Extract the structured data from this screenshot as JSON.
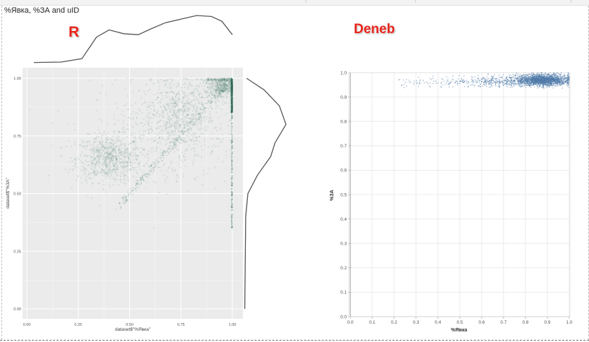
{
  "visual": {
    "title": "%Явка, %ЗА and uID"
  },
  "labels": {
    "r_badge": "R",
    "deneb_badge": "Deneb"
  },
  "colors": {
    "r_points": "#2e6b5a",
    "deneb_points": "#4c78a8",
    "badge_red": "#e8231a",
    "r_panel_bg": "#ebebeb",
    "density_line": "#555555"
  },
  "chart_data": [
    {
      "type": "scatter",
      "panel": "R (ggplot2 with marginal density)",
      "xlabel": "dataset$\"%Явка\"",
      "ylabel": "dataset$\"%ЗА\"",
      "xlim": [
        0.0,
        1.0
      ],
      "ylim": [
        0.0,
        1.0
      ],
      "x_ticks": [
        "0.00",
        "0.25",
        "0.50",
        "0.75",
        "1.00"
      ],
      "y_ticks": [
        "0.00",
        "0.25",
        "0.50",
        "0.75",
        "1.00"
      ],
      "grid": true,
      "legend": "none",
      "clusters": [
        {
          "x": 0.4,
          "y": 0.65,
          "spread_x": 0.08,
          "spread_y": 0.05,
          "weight": 0.3
        },
        {
          "x": 0.75,
          "y": 0.85,
          "spread_x": 0.09,
          "spread_y": 0.08,
          "weight": 0.3
        },
        {
          "x": 0.95,
          "y": 0.97,
          "spread_x": 0.04,
          "spread_y": 0.03,
          "weight": 0.25
        },
        {
          "x": 0.6,
          "y": 0.72,
          "spread_x": 0.2,
          "spread_y": 0.12,
          "weight": 0.15
        }
      ],
      "marginal_density_x": [
        [
          0.02,
          0.02
        ],
        [
          0.15,
          0.03
        ],
        [
          0.25,
          0.1
        ],
        [
          0.32,
          0.55
        ],
        [
          0.38,
          0.7
        ],
        [
          0.45,
          0.62
        ],
        [
          0.52,
          0.6
        ],
        [
          0.58,
          0.72
        ],
        [
          0.65,
          0.85
        ],
        [
          0.72,
          0.92
        ],
        [
          0.8,
          1.0
        ],
        [
          0.87,
          0.98
        ],
        [
          0.92,
          0.88
        ],
        [
          0.97,
          0.6
        ]
      ],
      "marginal_density_y": [
        [
          1.0,
          0.05
        ],
        [
          0.95,
          0.45
        ],
        [
          0.88,
          0.8
        ],
        [
          0.8,
          0.95
        ],
        [
          0.72,
          0.7
        ],
        [
          0.66,
          0.6
        ],
        [
          0.58,
          0.3
        ],
        [
          0.5,
          0.08
        ],
        [
          0.4,
          0.03
        ],
        [
          0.0,
          0.01
        ]
      ]
    },
    {
      "type": "scatter",
      "panel": "Deneb (Vega-Lite)",
      "xlabel": "%Явка",
      "ylabel": "%ЗА",
      "xlim": [
        0.0,
        1.0
      ],
      "ylim": [
        0.0,
        1.0
      ],
      "x_ticks": [
        "0.0",
        "0.1",
        "0.2",
        "0.3",
        "0.4",
        "0.5",
        "0.6",
        "0.7",
        "0.8",
        "0.9",
        "1.0"
      ],
      "y_ticks": [
        "0.0",
        "0.1",
        "0.2",
        "0.3",
        "0.4",
        "0.5",
        "0.6",
        "0.7",
        "0.8",
        "0.9",
        "1.0"
      ],
      "grid": true,
      "legend": "none",
      "clusters": [
        {
          "x": 0.88,
          "y": 0.97,
          "spread_x": 0.06,
          "spread_y": 0.012,
          "weight": 0.75
        },
        {
          "x": 0.72,
          "y": 0.965,
          "spread_x": 0.12,
          "spread_y": 0.012,
          "weight": 0.2
        },
        {
          "x": 0.45,
          "y": 0.96,
          "spread_x": 0.15,
          "spread_y": 0.01,
          "weight": 0.05
        }
      ]
    }
  ]
}
